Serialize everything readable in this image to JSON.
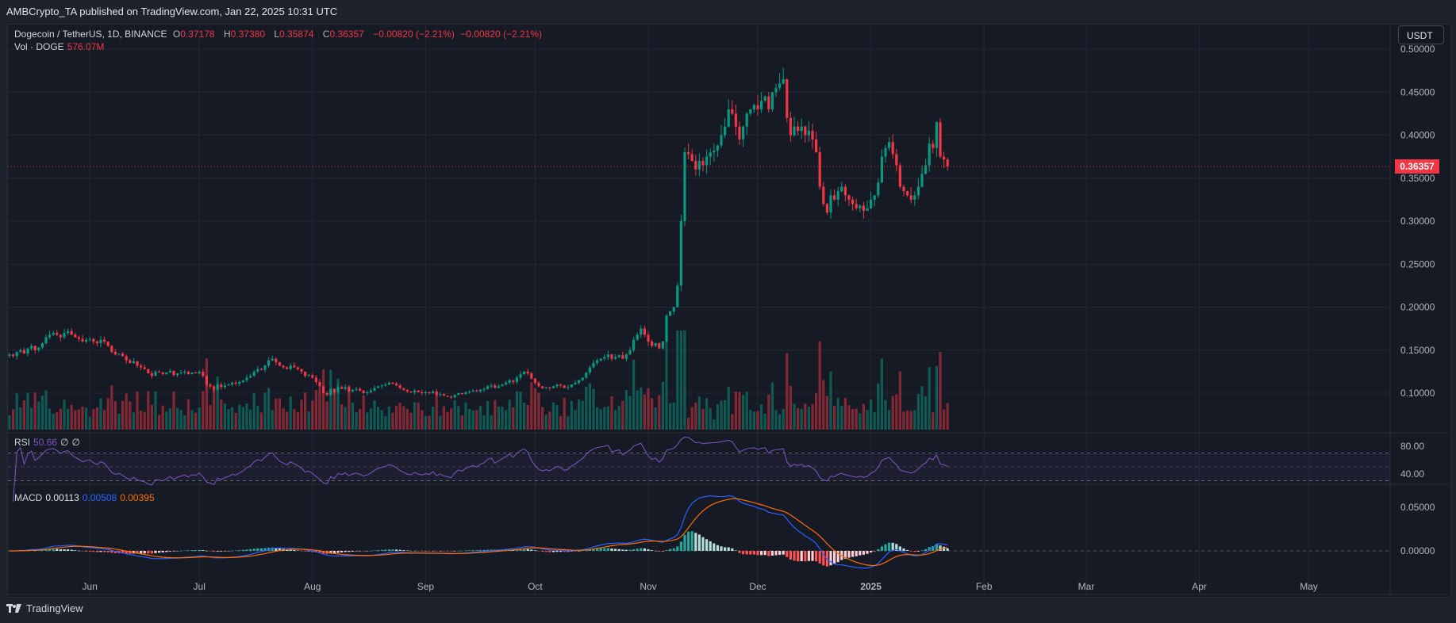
{
  "banner": "AMBCrypto_TA published on TradingView.com, Jan 22, 2025 10:31 UTC",
  "legend": {
    "symbol": "Dogecoin / TetherUS, 1D, BINANCE",
    "o_label": "O",
    "o": "0.37178",
    "h_label": "H",
    "h": "0.37380",
    "l_label": "L",
    "l": "0.35874",
    "c_label": "C",
    "c": "0.36357",
    "change": "−0.00820 (−2.21%)",
    "change2": "−0.00820 (−2.21%)",
    "vol_label": "Vol · DOGE",
    "vol": "576.07M",
    "rsi_label": "RSI",
    "rsi": "50.66",
    "rsi_extra1": "∅",
    "rsi_extra2": "∅",
    "macd_label": "MACD",
    "macd": "0.00113",
    "macd_signal_val": "0.00508",
    "macd_hist_val": "0.00395"
  },
  "currency_button": "USDT",
  "last_price": "0.36357",
  "footer": {
    "brand": "TradingView",
    "icon": "tradingview-logo-icon"
  },
  "colors": {
    "up": "#089981",
    "down": "#f23645",
    "rsi": "#7e57c2",
    "macd": "#2962ff",
    "signal": "#ff6d00",
    "background": "#161a25"
  },
  "chart_data": [
    {
      "type": "candlestick",
      "x_start": "2024-05-10",
      "interval": "1D",
      "ylim": [
        0.05,
        0.52
      ],
      "y_ticks": [
        "0.50000",
        "0.45000",
        "0.40000",
        "0.35000",
        "0.30000",
        "0.25000",
        "0.20000",
        "0.15000",
        "0.10000"
      ],
      "x_ticks": [
        {
          "label": "Jun",
          "date": "2024-06-01"
        },
        {
          "label": "Jul",
          "date": "2024-07-01"
        },
        {
          "label": "Aug",
          "date": "2024-08-01"
        },
        {
          "label": "Sep",
          "date": "2024-09-01"
        },
        {
          "label": "Oct",
          "date": "2024-10-01"
        },
        {
          "label": "Nov",
          "date": "2024-11-01"
        },
        {
          "label": "Dec",
          "date": "2024-12-01"
        },
        {
          "label": "2025",
          "date": "2025-01-01"
        },
        {
          "label": "Feb",
          "date": "2025-02-01"
        },
        {
          "label": "Mar",
          "date": "2025-03-01"
        },
        {
          "label": "Apr",
          "date": "2025-04-01"
        },
        {
          "label": "May",
          "date": "2025-05-01"
        }
      ],
      "grid": true,
      "closes": [
        0.145,
        0.143,
        0.148,
        0.15,
        0.146,
        0.152,
        0.155,
        0.15,
        0.153,
        0.158,
        0.165,
        0.168,
        0.17,
        0.168,
        0.165,
        0.17,
        0.172,
        0.168,
        0.165,
        0.163,
        0.16,
        0.162,
        0.163,
        0.16,
        0.158,
        0.162,
        0.16,
        0.155,
        0.148,
        0.145,
        0.146,
        0.143,
        0.138,
        0.135,
        0.137,
        0.132,
        0.13,
        0.128,
        0.123,
        0.12,
        0.125,
        0.124,
        0.122,
        0.124,
        0.126,
        0.121,
        0.123,
        0.124,
        0.125,
        0.122,
        0.124,
        0.123,
        0.125,
        0.12,
        0.11,
        0.108,
        0.104,
        0.11,
        0.107,
        0.109,
        0.11,
        0.112,
        0.111,
        0.113,
        0.115,
        0.118,
        0.12,
        0.125,
        0.128,
        0.127,
        0.132,
        0.138,
        0.14,
        0.136,
        0.132,
        0.13,
        0.128,
        0.132,
        0.13,
        0.128,
        0.125,
        0.12,
        0.121,
        0.118,
        0.113,
        0.108,
        0.1,
        0.098,
        0.105,
        0.101,
        0.107,
        0.105,
        0.107,
        0.102,
        0.104,
        0.105,
        0.103,
        0.1,
        0.101,
        0.103,
        0.106,
        0.108,
        0.109,
        0.11,
        0.112,
        0.111,
        0.109,
        0.106,
        0.104,
        0.102,
        0.101,
        0.103,
        0.101,
        0.1,
        0.101,
        0.1,
        0.102,
        0.098,
        0.099,
        0.097,
        0.096,
        0.095,
        0.098,
        0.1,
        0.099,
        0.101,
        0.102,
        0.103,
        0.102,
        0.104,
        0.105,
        0.108,
        0.109,
        0.106,
        0.108,
        0.11,
        0.112,
        0.115,
        0.113,
        0.118,
        0.122,
        0.125,
        0.123,
        0.117,
        0.112,
        0.108,
        0.106,
        0.107,
        0.106,
        0.108,
        0.11,
        0.109,
        0.106,
        0.107,
        0.11,
        0.112,
        0.115,
        0.118,
        0.124,
        0.13,
        0.135,
        0.138,
        0.14,
        0.142,
        0.145,
        0.14,
        0.142,
        0.144,
        0.14,
        0.145,
        0.15,
        0.162,
        0.168,
        0.175,
        0.168,
        0.16,
        0.155,
        0.158,
        0.152,
        0.16,
        0.19,
        0.195,
        0.2,
        0.225,
        0.3,
        0.38,
        0.378,
        0.37,
        0.36,
        0.37,
        0.365,
        0.375,
        0.38,
        0.382,
        0.388,
        0.4,
        0.41,
        0.43,
        0.425,
        0.41,
        0.395,
        0.41,
        0.425,
        0.43,
        0.435,
        0.43,
        0.44,
        0.445,
        0.43,
        0.45,
        0.455,
        0.46,
        0.465,
        0.42,
        0.4,
        0.41,
        0.405,
        0.41,
        0.4,
        0.405,
        0.395,
        0.38,
        0.34,
        0.32,
        0.31,
        0.33,
        0.325,
        0.335,
        0.34,
        0.33,
        0.325,
        0.32,
        0.315,
        0.318,
        0.312,
        0.315,
        0.325,
        0.33,
        0.345,
        0.375,
        0.385,
        0.392,
        0.378,
        0.365,
        0.34,
        0.335,
        0.33,
        0.325,
        0.33,
        0.34,
        0.355,
        0.365,
        0.39,
        0.385,
        0.415,
        0.375,
        0.37178,
        0.36357
      ],
      "last_candle": {
        "open": 0.37178,
        "high": 0.3738,
        "low": 0.35874,
        "close": 0.36357
      }
    },
    {
      "type": "line",
      "name": "RSI",
      "y_ticks": [
        "80.00",
        "40.00"
      ],
      "bands": [
        70,
        50,
        30
      ]
    },
    {
      "type": "bar+line",
      "name": "MACD",
      "y_ticks": [
        "0.05000",
        "0.00000"
      ]
    }
  ]
}
